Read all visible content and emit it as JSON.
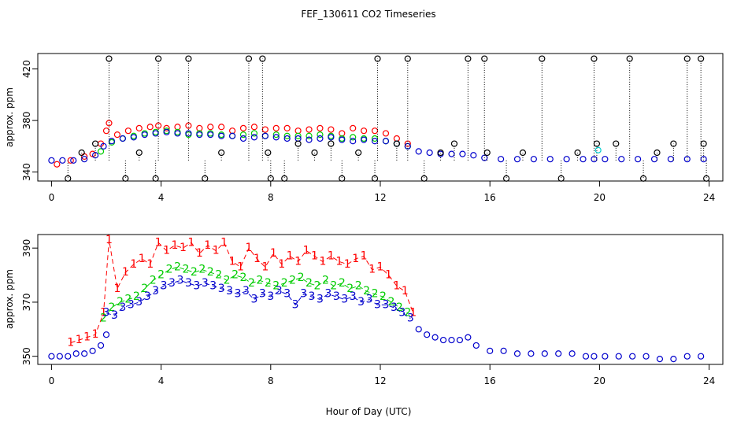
{
  "title": "FEF_130611  CO2 Timeseries",
  "xlabel": "Hour of Day (UTC)",
  "colors": {
    "series1": "#ff0000",
    "series2": "#00cc00",
    "series3": "#0000cc",
    "other": "#000000",
    "cyan": "#00cccc"
  },
  "chart_data": [
    {
      "type": "scatter",
      "ylabel": "approx. ppm",
      "xlim": [
        -0.5,
        24.5
      ],
      "ylim": [
        333,
        432
      ],
      "xticks": [
        0,
        4,
        8,
        12,
        16,
        20,
        24
      ],
      "yticks": [
        340,
        380,
        420
      ],
      "series": [
        {
          "marker": "circle",
          "color": "#ff0000",
          "x": [
            0.2,
            0.7,
            1.2,
            1.5,
            1.8,
            2.0,
            2.1,
            2.4,
            2.8,
            3.2,
            3.6,
            3.9,
            4.2,
            4.6,
            5.0,
            5.4,
            5.8,
            6.2,
            6.6,
            7.0,
            7.4,
            7.8,
            8.2,
            8.6,
            9.0,
            9.4,
            9.8,
            10.2,
            10.6,
            11.0,
            11.4,
            11.8,
            12.2,
            12.6,
            13.0
          ],
          "y": [
            346,
            349,
            352,
            354,
            362,
            372,
            378,
            369,
            372,
            374,
            375,
            376,
            374,
            375,
            376,
            374,
            375,
            375,
            372,
            374,
            375,
            373,
            374,
            374,
            372,
            373,
            374,
            373,
            370,
            374,
            372,
            372,
            370,
            366,
            362
          ]
        },
        {
          "marker": "circle",
          "color": "#00cc00",
          "x": [
            1.8,
            2.2,
            2.6,
            3.0,
            3.4,
            3.8,
            4.2,
            4.6,
            5.0,
            5.4,
            5.8,
            6.2,
            6.6,
            7.0,
            7.4,
            7.8,
            8.2,
            8.6,
            9.0,
            9.4,
            9.8,
            10.2,
            10.6,
            11.0,
            11.4,
            11.8,
            12.2,
            12.6,
            13.0
          ],
          "y": [
            356,
            363,
            366,
            368,
            370,
            371,
            372,
            371,
            369,
            370,
            370,
            369,
            368,
            369,
            370,
            368,
            369,
            368,
            368,
            368,
            369,
            368,
            366,
            367,
            366,
            366,
            364,
            362,
            360
          ]
        },
        {
          "marker": "circle",
          "color": "#0000cc",
          "x": [
            0.0,
            0.4,
            0.8,
            1.2,
            1.6,
            1.9,
            2.2,
            2.6,
            3.0,
            3.4,
            3.8,
            4.2,
            4.6,
            5.0,
            5.4,
            5.8,
            6.2,
            6.6,
            7.0,
            7.4,
            7.8,
            8.2,
            8.6,
            9.0,
            9.4,
            9.8,
            10.2,
            10.6,
            11.0,
            11.4,
            11.8,
            12.2,
            12.6,
            13.0,
            13.4,
            13.8,
            14.2,
            14.6,
            15.0,
            15.4,
            15.8,
            16.4,
            17.0,
            17.6,
            18.2,
            18.8,
            19.4,
            19.8,
            20.2,
            20.8,
            21.4,
            22.0,
            22.6,
            23.2,
            23.8
          ],
          "y": [
            349,
            349,
            349,
            350,
            353,
            360,
            364,
            366,
            367,
            369,
            370,
            371,
            370,
            370,
            369,
            369,
            368,
            368,
            366,
            367,
            368,
            367,
            366,
            366,
            365,
            366,
            367,
            365,
            364,
            365,
            364,
            364,
            362,
            360,
            356,
            355,
            354,
            354,
            354,
            353,
            351,
            350,
            350,
            350,
            350,
            350,
            350,
            350,
            350,
            350,
            350,
            350,
            350,
            350,
            350
          ]
        },
        {
          "marker": "circle",
          "color": "#000000",
          "x": [
            0.6,
            1.1,
            1.6,
            2.1,
            2.7,
            3.2,
            3.8,
            3.9,
            5.0,
            5.6,
            6.2,
            7.2,
            7.7,
            7.9,
            8.0,
            8.5,
            9.0,
            9.6,
            10.2,
            10.6,
            11.2,
            11.8,
            11.9,
            12.6,
            13.0,
            13.6,
            14.2,
            14.7,
            15.2,
            15.8,
            15.9,
            16.6,
            17.2,
            17.9,
            18.6,
            19.2,
            19.8,
            19.9,
            20.6,
            21.1,
            21.6,
            22.1,
            22.7,
            23.2,
            23.7,
            23.8,
            23.9
          ],
          "y": [
            335,
            355,
            362,
            428,
            335,
            355,
            335,
            428,
            428,
            335,
            355,
            428,
            428,
            355,
            335,
            335,
            362,
            355,
            362,
            335,
            355,
            335,
            428,
            362,
            428,
            335,
            355,
            362,
            428,
            428,
            355,
            335,
            355,
            428,
            335,
            355,
            428,
            362,
            362,
            428,
            335,
            355,
            362,
            428,
            428,
            362,
            335
          ]
        },
        {
          "marker": "circle",
          "color": "#00cccc",
          "x": [
            19.95
          ],
          "y": [
            357
          ]
        }
      ]
    },
    {
      "type": "scatter",
      "ylabel": "approx. ppm",
      "xlim": [
        -0.5,
        24.5
      ],
      "ylim": [
        347,
        395
      ],
      "xticks": [
        0,
        4,
        8,
        12,
        16,
        20,
        24
      ],
      "yticks": [
        350,
        370,
        390
      ],
      "series": [
        {
          "marker": "1",
          "color": "#ff0000",
          "x": [
            0.7,
            1.0,
            1.3,
            1.6,
            1.9,
            2.1,
            2.4,
            2.7,
            3.0,
            3.3,
            3.6,
            3.9,
            4.2,
            4.5,
            4.8,
            5.1,
            5.4,
            5.7,
            6.0,
            6.3,
            6.6,
            6.9,
            7.2,
            7.5,
            7.8,
            8.1,
            8.4,
            8.7,
            9.0,
            9.3,
            9.6,
            9.9,
            10.2,
            10.5,
            10.8,
            11.1,
            11.4,
            11.7,
            12.0,
            12.3,
            12.6,
            12.9,
            13.2
          ],
          "y": [
            355,
            356,
            357,
            358,
            366,
            393,
            375,
            381,
            384,
            386,
            384,
            392,
            389,
            391,
            390,
            392,
            388,
            391,
            389,
            392,
            385,
            383,
            390,
            386,
            383,
            388,
            384,
            387,
            385,
            389,
            387,
            385,
            387,
            385,
            384,
            386,
            387,
            382,
            383,
            380,
            376,
            374,
            366
          ]
        },
        {
          "marker": "2",
          "color": "#00cc00",
          "x": [
            1.9,
            2.2,
            2.5,
            2.8,
            3.1,
            3.4,
            3.7,
            4.0,
            4.3,
            4.6,
            4.9,
            5.2,
            5.5,
            5.8,
            6.1,
            6.4,
            6.7,
            7.0,
            7.3,
            7.6,
            7.9,
            8.2,
            8.5,
            8.8,
            9.1,
            9.4,
            9.7,
            10.0,
            10.3,
            10.6,
            10.9,
            11.2,
            11.5,
            11.8,
            12.1,
            12.4,
            12.7,
            13.0
          ],
          "y": [
            364,
            368,
            370,
            371,
            372,
            375,
            378,
            380,
            382,
            383,
            382,
            381,
            382,
            381,
            380,
            378,
            380,
            379,
            377,
            378,
            377,
            376,
            377,
            378,
            379,
            377,
            376,
            378,
            376,
            377,
            375,
            376,
            374,
            373,
            372,
            370,
            368,
            366
          ]
        },
        {
          "marker": "3",
          "color": "#0000cc",
          "x": [
            2.0,
            2.3,
            2.6,
            2.9,
            3.2,
            3.5,
            3.8,
            4.1,
            4.4,
            4.7,
            5.0,
            5.3,
            5.6,
            5.9,
            6.2,
            6.5,
            6.8,
            7.1,
            7.4,
            7.7,
            8.0,
            8.3,
            8.6,
            8.9,
            9.2,
            9.5,
            9.8,
            10.1,
            10.4,
            10.7,
            11.0,
            11.3,
            11.6,
            11.9,
            12.2,
            12.5,
            12.8,
            13.1
          ],
          "y": [
            366,
            365,
            368,
            369,
            370,
            372,
            374,
            376,
            377,
            378,
            377,
            376,
            377,
            376,
            375,
            374,
            373,
            374,
            371,
            373,
            372,
            374,
            373,
            369,
            373,
            372,
            371,
            373,
            372,
            371,
            372,
            370,
            371,
            369,
            369,
            368,
            366,
            364
          ]
        },
        {
          "marker": "circle",
          "color": "#0000cc",
          "x": [
            0.0,
            0.3,
            0.6,
            0.9,
            1.2,
            1.5,
            1.8,
            2.0,
            13.4,
            13.7,
            14.0,
            14.3,
            14.6,
            14.9,
            15.2,
            15.5,
            16.0,
            16.5,
            17.0,
            17.5,
            18.0,
            18.5,
            19.0,
            19.5,
            19.8,
            20.2,
            20.7,
            21.2,
            21.7,
            22.2,
            22.7,
            23.2,
            23.7
          ],
          "y": [
            350,
            350,
            350,
            351,
            351,
            352,
            354,
            358,
            360,
            358,
            357,
            356,
            356,
            356,
            357,
            354,
            352,
            352,
            351,
            351,
            351,
            351,
            351,
            350,
            350,
            350,
            350,
            350,
            350,
            349,
            349,
            350,
            350
          ]
        }
      ]
    }
  ]
}
